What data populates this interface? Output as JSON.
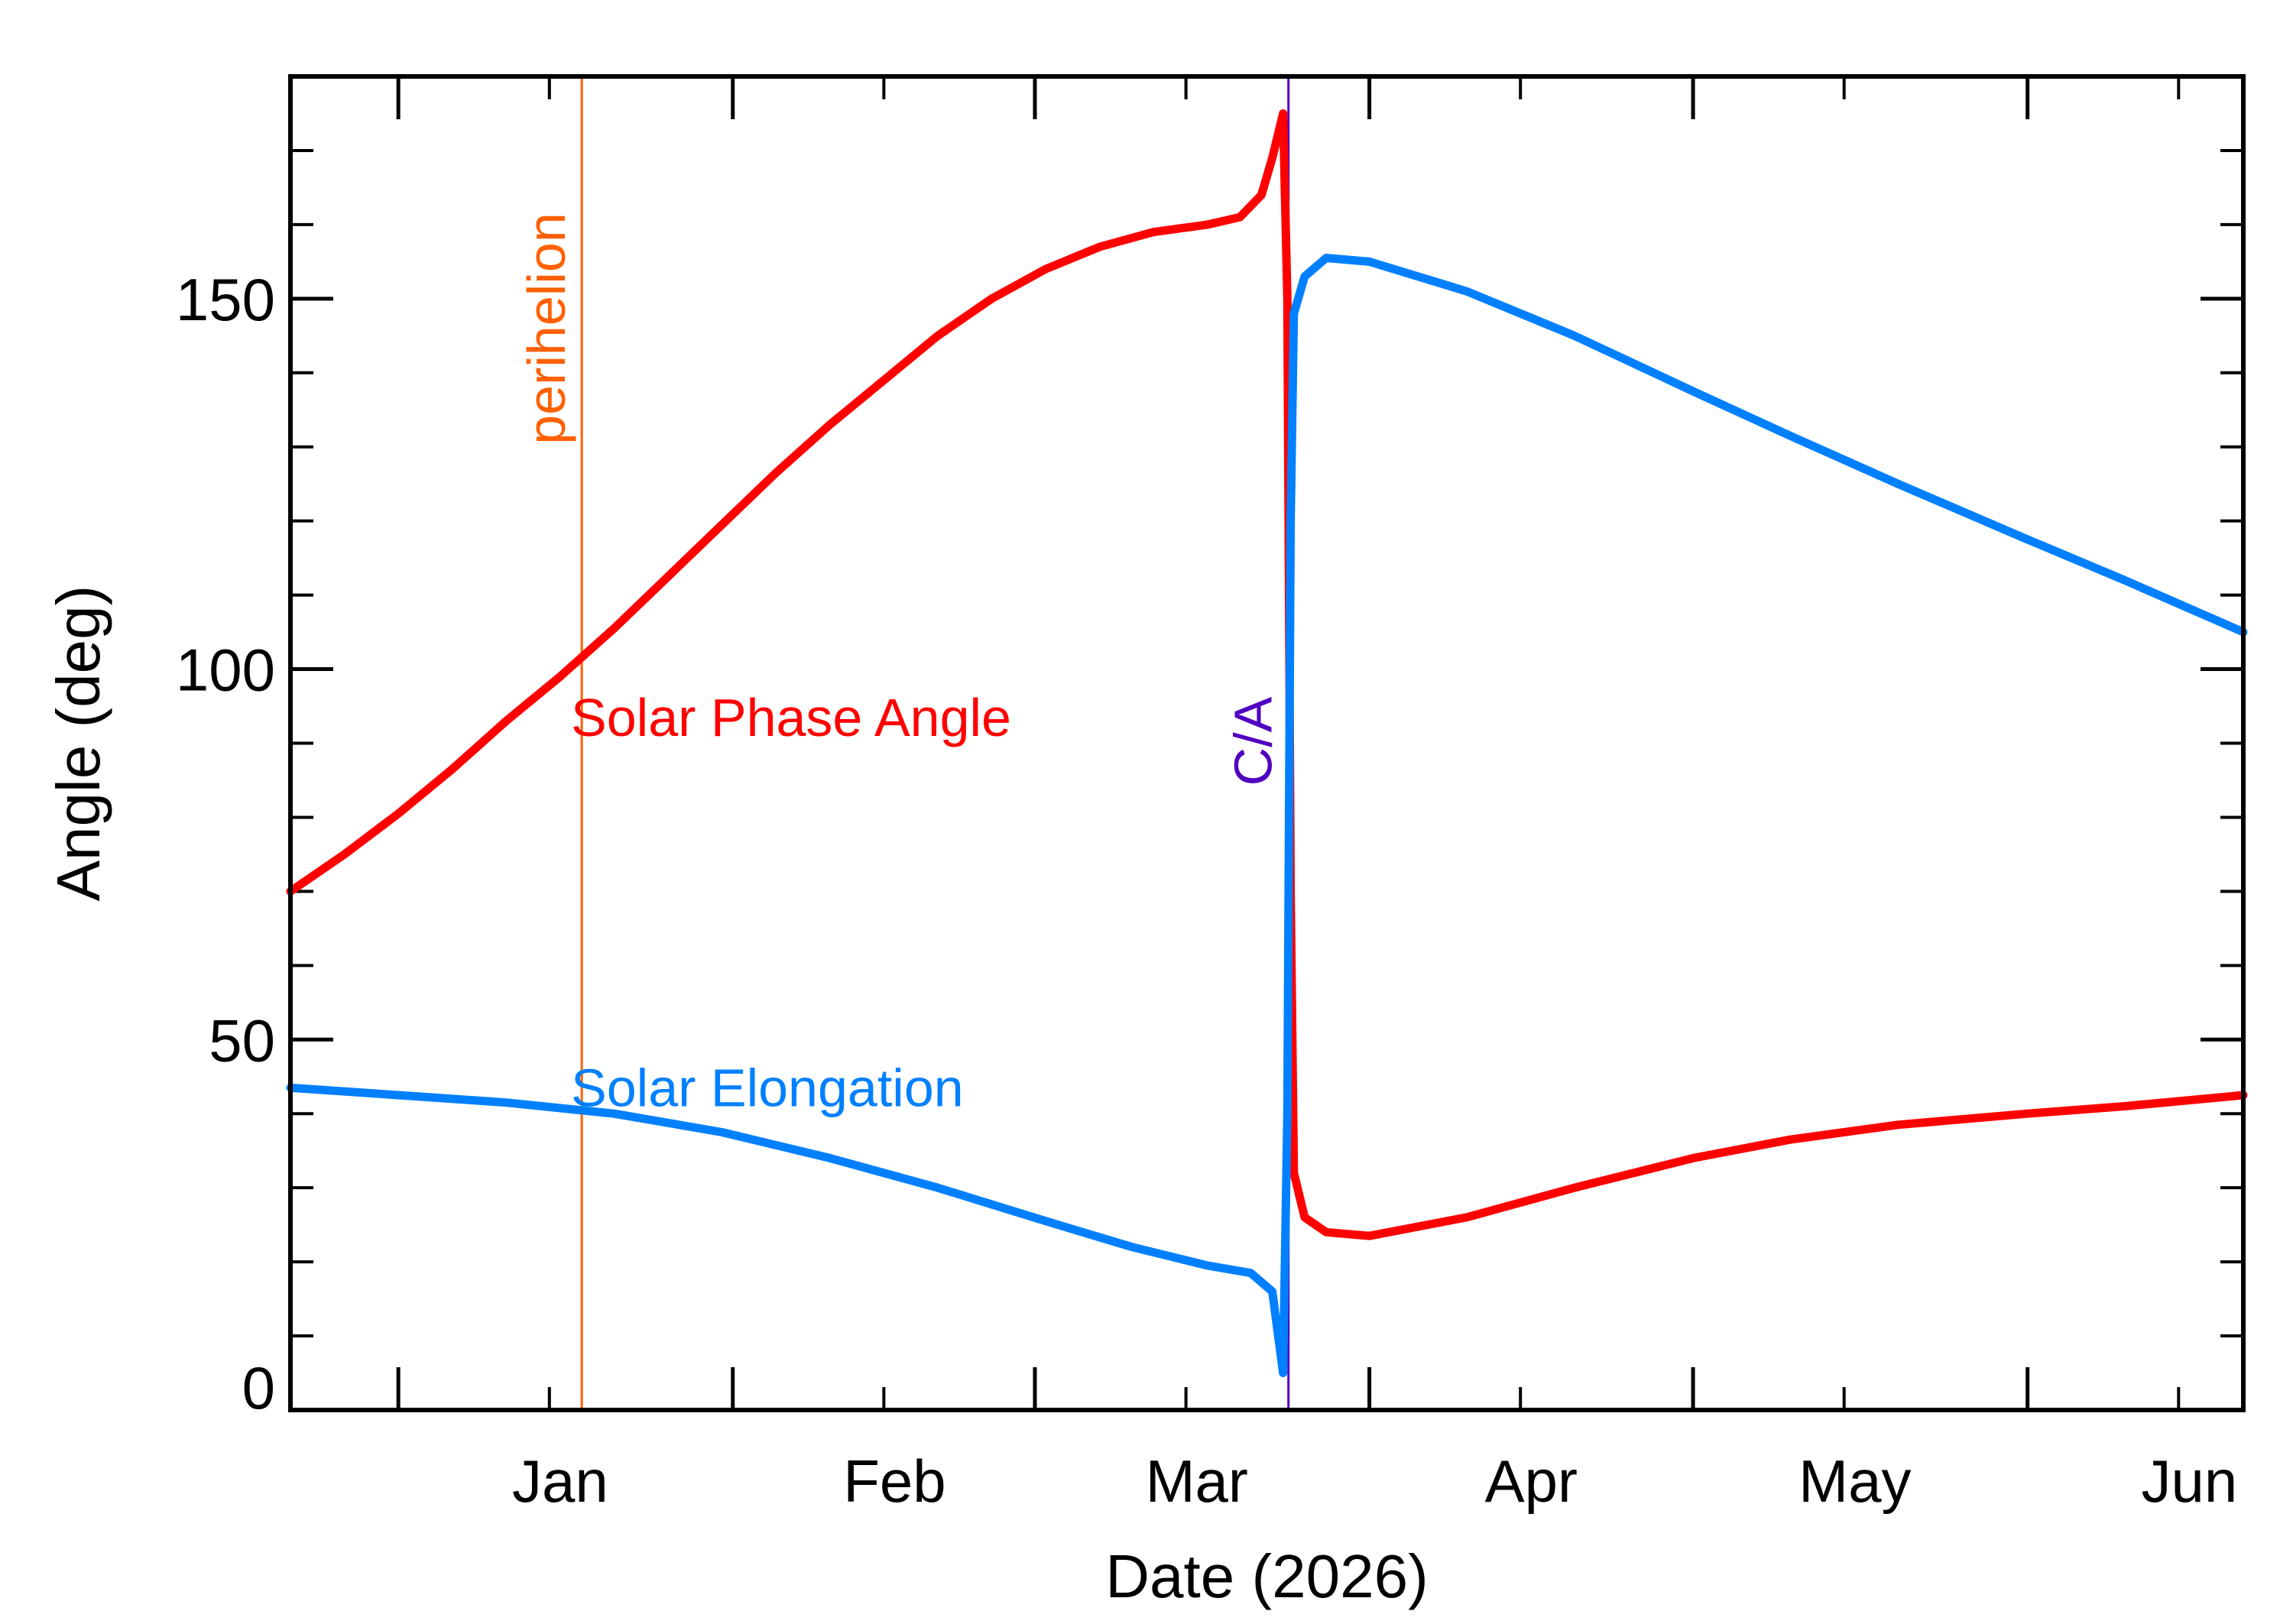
{
  "chart_data": {
    "type": "line",
    "xlabel": "Date (2026)",
    "ylabel": "Angle (deg)",
    "xlim": [
      "2025-12-22",
      "2026-06-21"
    ],
    "ylim": [
      0,
      180
    ],
    "grid": false,
    "x_ticks": [
      {
        "date": "2026-01-01",
        "label": "Jan"
      },
      {
        "date": "2026-02-01",
        "label": "Feb"
      },
      {
        "date": "2026-03-01",
        "label": "Mar"
      },
      {
        "date": "2026-04-01",
        "label": "Apr"
      },
      {
        "date": "2026-05-01",
        "label": "May"
      },
      {
        "date": "2026-06-01",
        "label": "Jun"
      }
    ],
    "y_ticks": [
      {
        "value": 0,
        "label": "0"
      },
      {
        "value": 50,
        "label": "50"
      },
      {
        "value": 100,
        "label": "100"
      },
      {
        "value": 150,
        "label": "150"
      }
    ],
    "series": [
      {
        "name": "Solar Phase Angle",
        "color": "#ff0000",
        "points": [
          [
            "2025-12-22",
            70
          ],
          [
            "2025-12-27",
            75
          ],
          [
            "2026-01-01",
            80.5
          ],
          [
            "2026-01-06",
            86.5
          ],
          [
            "2026-01-11",
            93
          ],
          [
            "2026-01-16",
            99
          ],
          [
            "2026-01-21",
            105.5
          ],
          [
            "2026-01-26",
            112.5
          ],
          [
            "2026-01-31",
            119.5
          ],
          [
            "2026-02-05",
            126.5
          ],
          [
            "2026-02-10",
            133
          ],
          [
            "2026-02-15",
            139
          ],
          [
            "2026-02-20",
            145
          ],
          [
            "2026-02-25",
            150
          ],
          [
            "2026-03-02",
            154
          ],
          [
            "2026-03-07",
            157
          ],
          [
            "2026-03-12",
            159
          ],
          [
            "2026-03-17",
            160
          ],
          [
            "2026-03-20",
            161
          ],
          [
            "2026-03-22",
            164
          ],
          [
            "2026-03-23",
            169
          ],
          [
            "2026-03-24",
            175
          ],
          [
            "2026-03-24.4",
            150
          ],
          [
            "2026-03-24.7",
            70
          ],
          [
            "2026-03-25",
            32
          ],
          [
            "2026-03-26",
            26
          ],
          [
            "2026-03-28",
            24
          ],
          [
            "2026-04-01",
            23.5
          ],
          [
            "2026-04-10",
            26
          ],
          [
            "2026-04-20",
            30
          ],
          [
            "2026-05-01",
            34
          ],
          [
            "2026-05-10",
            36.5
          ],
          [
            "2026-05-20",
            38.5
          ],
          [
            "2026-06-01",
            40
          ],
          [
            "2026-06-10",
            41
          ],
          [
            "2026-06-21",
            42.5
          ]
        ]
      },
      {
        "name": "Solar Elongation",
        "color": "#0080ff",
        "points": [
          [
            "2025-12-22",
            43.5
          ],
          [
            "2026-01-01",
            42.5
          ],
          [
            "2026-01-11",
            41.5
          ],
          [
            "2026-01-21",
            40
          ],
          [
            "2026-01-31",
            37.5
          ],
          [
            "2026-02-10",
            34
          ],
          [
            "2026-02-20",
            30
          ],
          [
            "2026-03-02",
            25.5
          ],
          [
            "2026-03-10",
            22
          ],
          [
            "2026-03-17",
            19.5
          ],
          [
            "2026-03-21",
            18.5
          ],
          [
            "2026-03-23",
            16
          ],
          [
            "2026-03-24",
            5
          ],
          [
            "2026-03-24.4",
            40
          ],
          [
            "2026-03-24.7",
            120
          ],
          [
            "2026-03-25",
            148
          ],
          [
            "2026-03-26",
            153
          ],
          [
            "2026-03-28",
            155.5
          ],
          [
            "2026-04-01",
            155
          ],
          [
            "2026-04-10",
            151
          ],
          [
            "2026-04-20",
            145
          ],
          [
            "2026-05-01",
            137.5
          ],
          [
            "2026-05-10",
            131.5
          ],
          [
            "2026-05-20",
            125
          ],
          [
            "2026-06-01",
            117.5
          ],
          [
            "2026-06-10",
            112
          ],
          [
            "2026-06-21",
            105
          ]
        ]
      }
    ],
    "markers": [
      {
        "label": "perihelion",
        "date": "2026-01-18",
        "color": "#ff6000"
      },
      {
        "label": "C/A",
        "date": "2026-03-24.5",
        "color": "#5000c0"
      }
    ],
    "annotations": [
      {
        "text": "Solar Phase Angle",
        "color": "#ff0000"
      },
      {
        "text": "Solar Elongation",
        "color": "#0080ff"
      }
    ]
  }
}
